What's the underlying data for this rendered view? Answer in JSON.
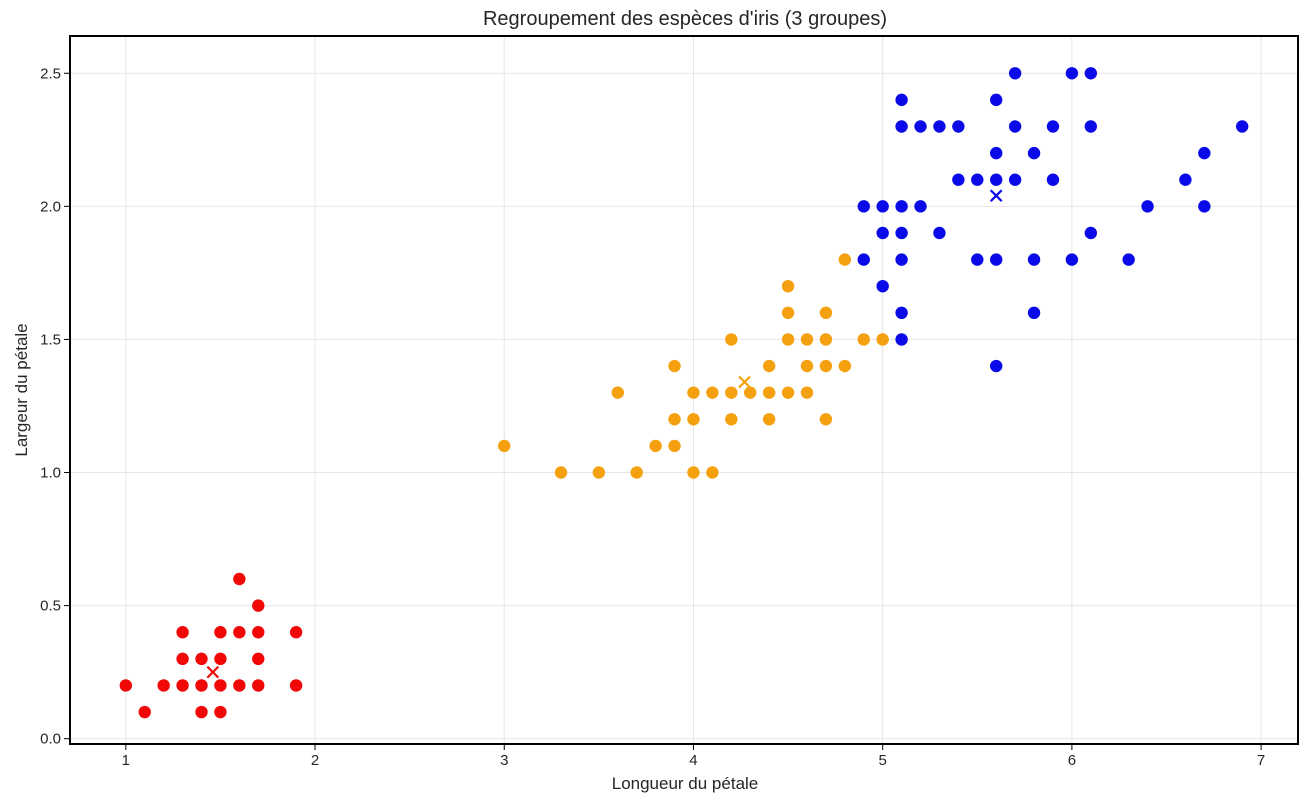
{
  "chart_data": {
    "type": "scatter",
    "title": "Regroupement des espèces d'iris (3 groupes)",
    "xlabel": "Longueur du pétale",
    "ylabel": "Largeur du pétale",
    "xlim": [
      0.705,
      7.195
    ],
    "ylim": [
      -0.02,
      2.64
    ],
    "xticks": [
      1,
      2,
      3,
      4,
      5,
      6,
      7
    ],
    "xtick_labels": [
      "1",
      "2",
      "3",
      "4",
      "5",
      "6",
      "7"
    ],
    "yticks": [
      0.0,
      0.5,
      1.0,
      1.5,
      2.0,
      2.5
    ],
    "ytick_labels": [
      "0.0",
      "0.5",
      "1.0",
      "1.5",
      "2.0",
      "2.5"
    ],
    "grid": true,
    "series": [
      {
        "color": "#f20707",
        "points": [
          [
            1.0,
            0.2
          ],
          [
            1.1,
            0.1
          ],
          [
            1.2,
            0.2
          ],
          [
            1.3,
            0.2
          ],
          [
            1.3,
            0.3
          ],
          [
            1.3,
            0.4
          ],
          [
            1.4,
            0.1
          ],
          [
            1.4,
            0.2
          ],
          [
            1.4,
            0.3
          ],
          [
            1.5,
            0.1
          ],
          [
            1.5,
            0.2
          ],
          [
            1.5,
            0.3
          ],
          [
            1.5,
            0.4
          ],
          [
            1.6,
            0.2
          ],
          [
            1.6,
            0.4
          ],
          [
            1.6,
            0.6
          ],
          [
            1.7,
            0.2
          ],
          [
            1.7,
            0.3
          ],
          [
            1.7,
            0.4
          ],
          [
            1.7,
            0.5
          ],
          [
            1.9,
            0.2
          ],
          [
            1.9,
            0.4
          ]
        ],
        "centroid": [
          1.46,
          0.25
        ]
      },
      {
        "color": "#f5a00f",
        "points": [
          [
            3.0,
            1.1
          ],
          [
            3.3,
            1.0
          ],
          [
            3.5,
            1.0
          ],
          [
            3.6,
            1.3
          ],
          [
            3.7,
            1.0
          ],
          [
            3.8,
            1.1
          ],
          [
            3.9,
            1.1
          ],
          [
            3.9,
            1.2
          ],
          [
            3.9,
            1.4
          ],
          [
            4.0,
            1.0
          ],
          [
            4.0,
            1.2
          ],
          [
            4.0,
            1.3
          ],
          [
            4.1,
            1.0
          ],
          [
            4.1,
            1.3
          ],
          [
            4.2,
            1.2
          ],
          [
            4.2,
            1.3
          ],
          [
            4.2,
            1.5
          ],
          [
            4.3,
            1.3
          ],
          [
            4.4,
            1.2
          ],
          [
            4.4,
            1.3
          ],
          [
            4.4,
            1.4
          ],
          [
            4.5,
            1.3
          ],
          [
            4.5,
            1.5
          ],
          [
            4.5,
            1.6
          ],
          [
            4.5,
            1.7
          ],
          [
            4.6,
            1.3
          ],
          [
            4.6,
            1.4
          ],
          [
            4.6,
            1.5
          ],
          [
            4.7,
            1.2
          ],
          [
            4.7,
            1.4
          ],
          [
            4.7,
            1.5
          ],
          [
            4.7,
            1.6
          ],
          [
            4.8,
            1.4
          ],
          [
            4.8,
            1.8
          ],
          [
            4.9,
            1.5
          ],
          [
            5.0,
            1.5
          ]
        ],
        "centroid": [
          4.27,
          1.34
        ]
      },
      {
        "color": "#0a0ae8",
        "points": [
          [
            4.9,
            1.8
          ],
          [
            4.9,
            2.0
          ],
          [
            5.0,
            1.7
          ],
          [
            5.0,
            1.9
          ],
          [
            5.0,
            2.0
          ],
          [
            5.1,
            1.5
          ],
          [
            5.1,
            1.6
          ],
          [
            5.1,
            1.8
          ],
          [
            5.1,
            1.9
          ],
          [
            5.1,
            2.0
          ],
          [
            5.1,
            2.3
          ],
          [
            5.1,
            2.4
          ],
          [
            5.2,
            2.0
          ],
          [
            5.2,
            2.3
          ],
          [
            5.3,
            1.9
          ],
          [
            5.3,
            2.3
          ],
          [
            5.4,
            2.1
          ],
          [
            5.4,
            2.3
          ],
          [
            5.5,
            1.8
          ],
          [
            5.5,
            2.1
          ],
          [
            5.6,
            1.4
          ],
          [
            5.6,
            1.8
          ],
          [
            5.6,
            2.1
          ],
          [
            5.6,
            2.2
          ],
          [
            5.6,
            2.4
          ],
          [
            5.7,
            2.1
          ],
          [
            5.7,
            2.3
          ],
          [
            5.7,
            2.5
          ],
          [
            5.8,
            1.6
          ],
          [
            5.8,
            1.8
          ],
          [
            5.8,
            2.2
          ],
          [
            5.9,
            2.1
          ],
          [
            5.9,
            2.3
          ],
          [
            6.0,
            1.8
          ],
          [
            6.0,
            2.5
          ],
          [
            6.1,
            1.9
          ],
          [
            6.1,
            2.3
          ],
          [
            6.1,
            2.5
          ],
          [
            6.3,
            1.8
          ],
          [
            6.4,
            2.0
          ],
          [
            6.6,
            2.1
          ],
          [
            6.7,
            2.0
          ],
          [
            6.7,
            2.2
          ],
          [
            6.9,
            2.3
          ]
        ],
        "centroid": [
          5.6,
          2.04
        ]
      }
    ]
  }
}
